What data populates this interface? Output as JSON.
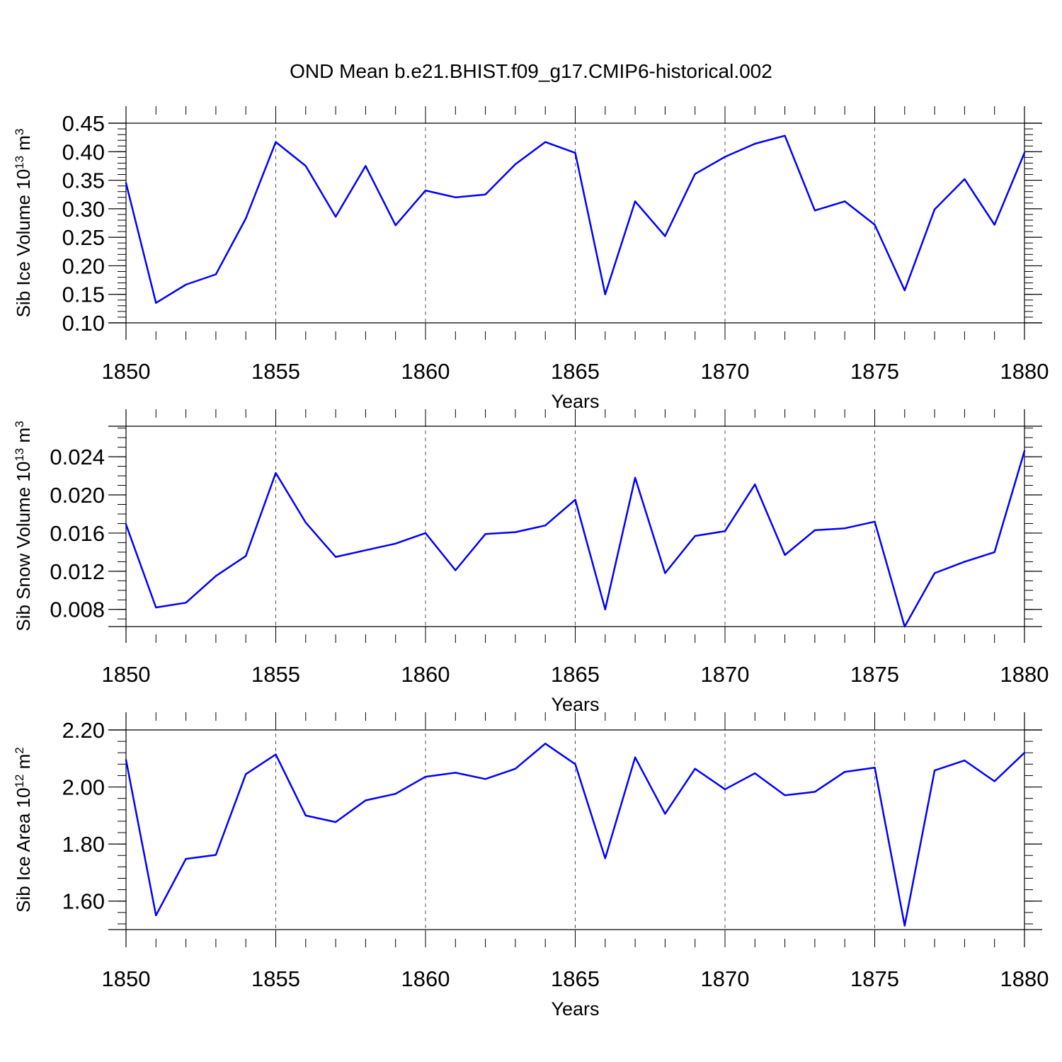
{
  "title": "OND Mean b.e21.BHIST.f09_g17.CMIP6-historical.002",
  "colors": {
    "line": "#0000ff",
    "axis": "#000000",
    "grid": "#555555"
  },
  "chart_data": [
    {
      "type": "line",
      "name": "ice-volume",
      "title": "OND Mean b.e21.BHIST.f09_g17.CMIP6-historical.002",
      "xlabel": "Years",
      "ylabel": {
        "base": "Sib Ice Volume 10",
        "exp": "13",
        "unit": " m",
        "unit_exp": "3"
      },
      "xlim": [
        1850,
        1880
      ],
      "ylim": [
        0.1,
        0.45
      ],
      "xticks": [
        1850,
        1855,
        1860,
        1865,
        1870,
        1875,
        1880
      ],
      "xtick_labels": [
        "1850",
        "1855",
        "1860",
        "1865",
        "1870",
        "1875",
        "1880"
      ],
      "yticks": [
        0.1,
        0.15,
        0.2,
        0.25,
        0.3,
        0.35,
        0.4,
        0.45
      ],
      "ytick_labels": [
        "0.10",
        "0.15",
        "0.20",
        "0.25",
        "0.30",
        "0.35",
        "0.40",
        "0.45"
      ],
      "yminor": 0.01,
      "x": [
        1850,
        1851,
        1852,
        1853,
        1854,
        1855,
        1856,
        1857,
        1858,
        1859,
        1860,
        1861,
        1862,
        1863,
        1864,
        1865,
        1866,
        1867,
        1868,
        1869,
        1870,
        1871,
        1872,
        1873,
        1874,
        1875,
        1876,
        1877,
        1878,
        1879,
        1880
      ],
      "values": [
        0.345,
        0.135,
        0.167,
        0.185,
        0.283,
        0.417,
        0.375,
        0.286,
        0.375,
        0.271,
        0.332,
        0.32,
        0.325,
        0.378,
        0.417,
        0.398,
        0.15,
        0.313,
        0.252,
        0.361,
        0.391,
        0.414,
        0.428,
        0.297,
        0.313,
        0.272,
        0.157,
        0.299,
        0.352,
        0.272,
        0.398
      ],
      "vertical_grid": [
        1855,
        1860,
        1865,
        1870,
        1875
      ]
    },
    {
      "type": "line",
      "name": "snow-volume",
      "xlabel": "Years",
      "ylabel": {
        "base": "Sib Snow Volume 10",
        "exp": "13",
        "unit": " m",
        "unit_exp": "3"
      },
      "xlim": [
        1850,
        1880
      ],
      "ylim": [
        0.0062,
        0.0272
      ],
      "xticks": [
        1850,
        1855,
        1860,
        1865,
        1870,
        1875,
        1880
      ],
      "xtick_labels": [
        "1850",
        "1855",
        "1860",
        "1865",
        "1870",
        "1875",
        "1880"
      ],
      "yticks": [
        0.008,
        0.012,
        0.016,
        0.02,
        0.024
      ],
      "ytick_labels": [
        "0.008",
        "0.012",
        "0.016",
        "0.020",
        "0.024"
      ],
      "yminor": 0.001,
      "x": [
        1850,
        1851,
        1852,
        1853,
        1854,
        1855,
        1856,
        1857,
        1858,
        1859,
        1860,
        1861,
        1862,
        1863,
        1864,
        1865,
        1866,
        1867,
        1868,
        1869,
        1870,
        1871,
        1872,
        1873,
        1874,
        1875,
        1876,
        1877,
        1878,
        1879,
        1880
      ],
      "values": [
        0.0169,
        0.0082,
        0.0087,
        0.0115,
        0.0136,
        0.0223,
        0.0171,
        0.0135,
        0.0142,
        0.0149,
        0.016,
        0.0121,
        0.0159,
        0.0161,
        0.0168,
        0.0195,
        0.008,
        0.0218,
        0.0118,
        0.0157,
        0.0162,
        0.0211,
        0.0137,
        0.0163,
        0.0165,
        0.0172,
        0.0062,
        0.0118,
        0.013,
        0.014,
        0.0246
      ],
      "vertical_grid": [
        1855,
        1860,
        1865,
        1870,
        1875
      ]
    },
    {
      "type": "line",
      "name": "ice-area",
      "xlabel": "Years",
      "ylabel": {
        "base": "Sib Ice Area 10",
        "exp": "12",
        "unit": " m",
        "unit_exp": "2"
      },
      "xlim": [
        1850,
        1880
      ],
      "ylim": [
        1.5,
        2.2
      ],
      "xticks": [
        1850,
        1855,
        1860,
        1865,
        1870,
        1875,
        1880
      ],
      "xtick_labels": [
        "1850",
        "1855",
        "1860",
        "1865",
        "1870",
        "1875",
        "1880"
      ],
      "yticks": [
        1.6,
        1.8,
        2.0,
        2.2
      ],
      "ytick_labels": [
        "1.60",
        "1.80",
        "2.00",
        "2.20"
      ],
      "yminor": 0.04,
      "x": [
        1850,
        1851,
        1852,
        1853,
        1854,
        1855,
        1856,
        1857,
        1858,
        1859,
        1860,
        1861,
        1862,
        1863,
        1864,
        1865,
        1866,
        1867,
        1868,
        1869,
        1870,
        1871,
        1872,
        1873,
        1874,
        1875,
        1876,
        1877,
        1878,
        1879,
        1880
      ],
      "values": [
        2.095,
        1.55,
        1.748,
        1.762,
        2.045,
        2.114,
        1.9,
        1.877,
        1.953,
        1.976,
        2.036,
        2.05,
        2.028,
        2.064,
        2.152,
        2.08,
        1.75,
        2.104,
        1.906,
        2.064,
        1.992,
        2.048,
        1.971,
        1.983,
        2.053,
        2.068,
        1.514,
        2.058,
        2.093,
        2.02,
        2.12
      ],
      "vertical_grid": [
        1855,
        1860,
        1865,
        1870,
        1875
      ]
    }
  ]
}
